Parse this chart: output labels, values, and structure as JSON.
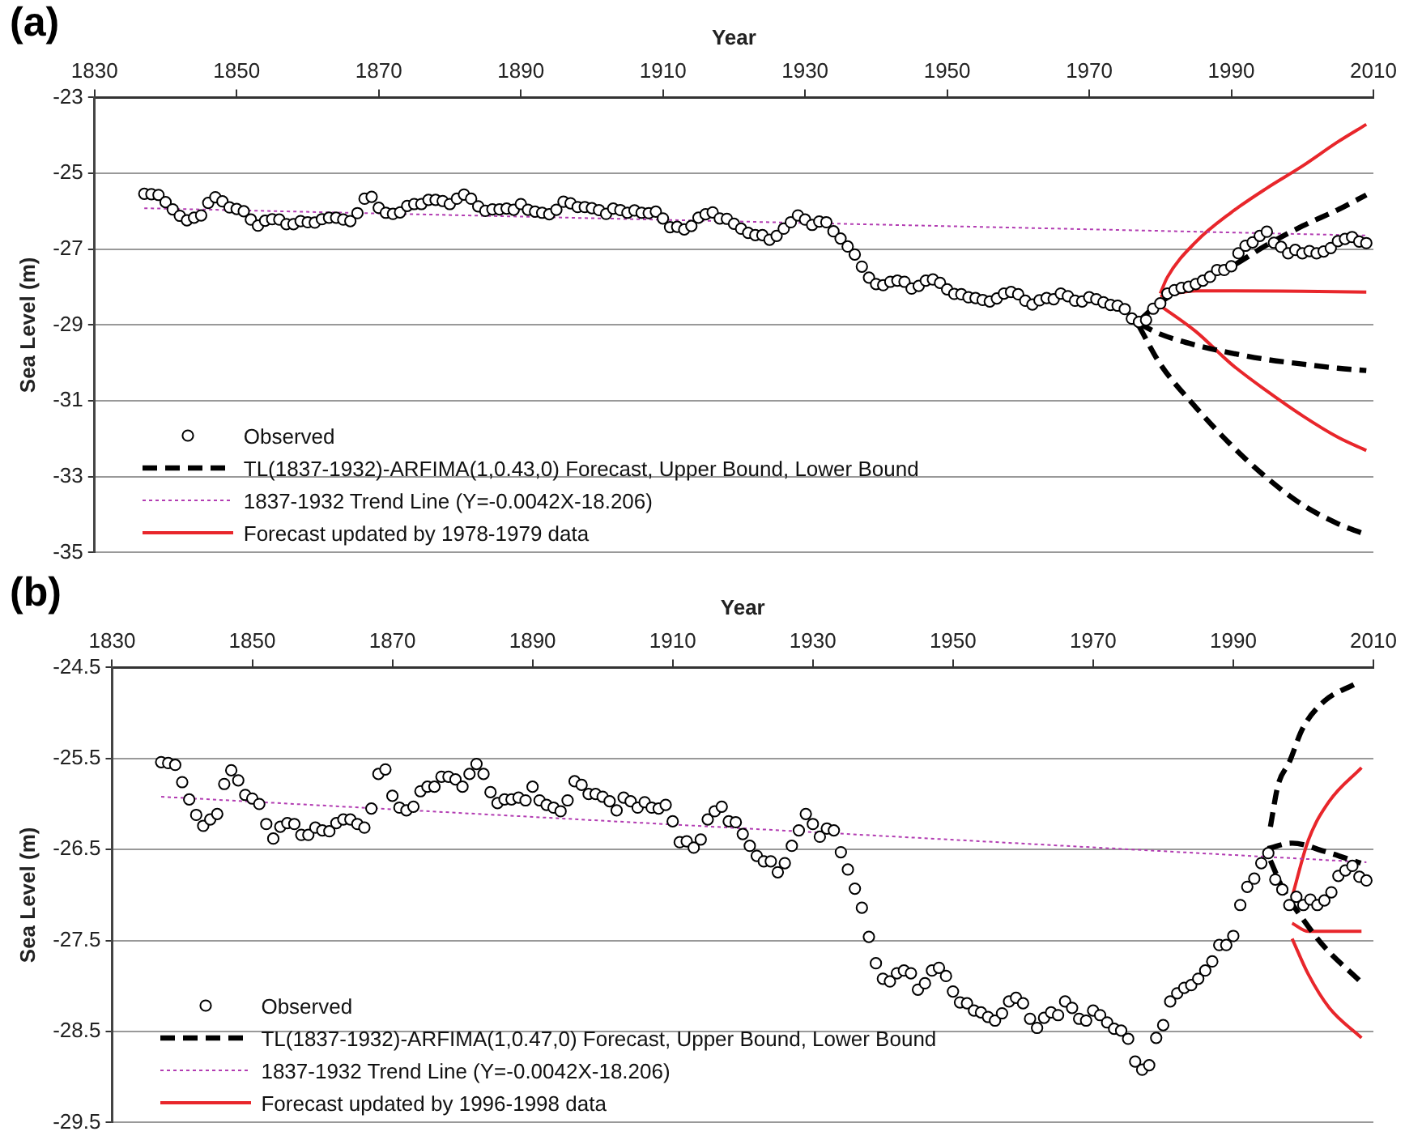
{
  "chart_data": [
    {
      "type": "line",
      "title": "(a)",
      "xlabel": "Year",
      "ylabel": "Sea Level (m)",
      "xlim": [
        1830,
        2010
      ],
      "xticks": [
        1830,
        1850,
        1870,
        1890,
        1910,
        1930,
        1950,
        1970,
        1990,
        2010
      ],
      "ylim": [
        -35,
        -23
      ],
      "yticks": [
        -35,
        -33,
        -31,
        -29,
        -27,
        -25,
        -23
      ],
      "grid": "y",
      "legend": "bottom left",
      "series": [
        {
          "name": "Observed",
          "type": "scatter",
          "marker": "circle",
          "color": "#000000",
          "x": [
            1837,
            1838,
            1839,
            1840,
            1841,
            1842,
            1843,
            1844,
            1845,
            1846,
            1847,
            1848,
            1849,
            1850,
            1851,
            1852,
            1853,
            1854,
            1855,
            1856,
            1857,
            1858,
            1859,
            1860,
            1861,
            1862,
            1863,
            1864,
            1865,
            1866,
            1867,
            1868,
            1869,
            1870,
            1871,
            1872,
            1873,
            1874,
            1875,
            1876,
            1877,
            1878,
            1879,
            1880,
            1881,
            1882,
            1883,
            1884,
            1885,
            1886,
            1887,
            1888,
            1889,
            1890,
            1891,
            1892,
            1893,
            1894,
            1895,
            1896,
            1897,
            1898,
            1899,
            1900,
            1901,
            1902,
            1903,
            1904,
            1905,
            1906,
            1907,
            1908,
            1909,
            1910,
            1911,
            1912,
            1913,
            1914,
            1915,
            1916,
            1917,
            1918,
            1919,
            1920,
            1921,
            1922,
            1923,
            1924,
            1925,
            1926,
            1927,
            1928,
            1929,
            1930,
            1931,
            1932,
            1933,
            1934,
            1935,
            1936,
            1937,
            1938,
            1939,
            1940,
            1941,
            1942,
            1943,
            1944,
            1945,
            1946,
            1947,
            1948,
            1949,
            1950,
            1951,
            1952,
            1953,
            1954,
            1955,
            1956,
            1957,
            1958,
            1959,
            1960,
            1961,
            1962,
            1963,
            1964,
            1965,
            1966,
            1967,
            1968,
            1969,
            1970,
            1971,
            1972,
            1973,
            1974,
            1975,
            1976,
            1977,
            1978,
            1979,
            1980,
            1981,
            1982,
            1983,
            1984,
            1985,
            1986,
            1987,
            1988,
            1989,
            1990,
            1991,
            1992,
            1993,
            1994,
            1995,
            1996,
            1997,
            1998,
            1999,
            2000,
            2001,
            2002,
            2003,
            2004,
            2005,
            2006,
            2007,
            2008,
            2009
          ],
          "values": [
            -25.54,
            -25.55,
            -25.57,
            -25.76,
            -25.95,
            -26.12,
            -26.24,
            -26.17,
            -26.11,
            -25.78,
            -25.63,
            -25.74,
            -25.9,
            -25.94,
            -26.0,
            -26.22,
            -26.38,
            -26.25,
            -26.21,
            -26.22,
            -26.34,
            -26.34,
            -26.26,
            -26.29,
            -26.3,
            -26.21,
            -26.17,
            -26.17,
            -26.22,
            -26.26,
            -26.05,
            -25.67,
            -25.62,
            -25.91,
            -26.04,
            -26.07,
            -26.03,
            -25.86,
            -25.81,
            -25.81,
            -25.7,
            -25.7,
            -25.73,
            -25.81,
            -25.67,
            -25.56,
            -25.67,
            -25.87,
            -25.99,
            -25.95,
            -25.95,
            -25.93,
            -25.96,
            -25.81,
            -25.96,
            -26.01,
            -26.04,
            -26.08,
            -25.96,
            -25.75,
            -25.79,
            -25.89,
            -25.89,
            -25.92,
            -25.97,
            -26.07,
            -25.93,
            -25.97,
            -26.04,
            -25.98,
            -26.04,
            -26.05,
            -26.01,
            -26.19,
            -26.42,
            -26.41,
            -26.48,
            -26.39,
            -26.17,
            -26.08,
            -26.03,
            -26.19,
            -26.2,
            -26.33,
            -26.46,
            -26.57,
            -26.63,
            -26.63,
            -26.75,
            -26.65,
            -26.46,
            -26.29,
            -26.11,
            -26.22,
            -26.36,
            -26.27,
            -26.29,
            -26.53,
            -26.72,
            -26.93,
            -27.14,
            -27.46,
            -27.75,
            -27.92,
            -27.95,
            -27.86,
            -27.83,
            -27.86,
            -28.04,
            -27.97,
            -27.83,
            -27.8,
            -27.89,
            -28.06,
            -28.18,
            -28.19,
            -28.27,
            -28.29,
            -28.34,
            -28.38,
            -28.3,
            -28.17,
            -28.13,
            -28.19,
            -28.36,
            -28.46,
            -28.35,
            -28.29,
            -28.32,
            -28.17,
            -28.24,
            -28.36,
            -28.38,
            -28.27,
            -28.32,
            -28.4,
            -28.47,
            -28.49,
            -28.58,
            -28.83,
            -28.92,
            -28.87,
            -28.57,
            -28.43,
            -28.17,
            -28.08,
            -28.02,
            -27.99,
            -27.92,
            -27.83,
            -27.73,
            -27.55,
            -27.55,
            -27.45,
            -27.11,
            -26.91,
            -26.82,
            -26.65,
            -26.54,
            -26.83,
            -26.94,
            -27.11,
            -27.02,
            -27.11,
            -27.05,
            -27.11,
            -27.06,
            -26.97,
            -26.79,
            -26.73,
            -26.68,
            -26.8,
            -26.84
          ]
        },
        {
          "name": "TL(1837-1932)-ARFIMA(1,0.43,0) Forecast, Upper Bound, Lower Bound",
          "line_style": "dashed",
          "color": "#000000",
          "x": [
            1977,
            1980,
            1985,
            1990,
            1995,
            2000,
            2005,
            2009
          ],
          "values": [
            -28.89,
            -28.4,
            -27.89,
            -27.46,
            -26.89,
            -26.39,
            -25.96,
            -25.57
          ]
        },
        {
          "line_style": "dashed",
          "color": "#000000",
          "x": [
            1977,
            1980,
            1985,
            1990,
            1995,
            2000,
            2005,
            2009
          ],
          "values": [
            -28.96,
            -29.24,
            -29.53,
            -29.74,
            -29.91,
            -30.03,
            -30.14,
            -30.2
          ]
        },
        {
          "line_style": "dashed",
          "color": "#000000",
          "x": [
            1977,
            1980,
            1985,
            1990,
            1995,
            2000,
            2005,
            2009
          ],
          "values": [
            -29.03,
            -30.03,
            -31.17,
            -32.17,
            -33.03,
            -33.74,
            -34.24,
            -34.53
          ]
        },
        {
          "name": "1837-1932 Trend Line (Y=-0.0042X-18.206)",
          "line_style": "dotted",
          "color": "#b23cb2",
          "x": [
            1837,
            2009
          ],
          "values": [
            -25.92,
            -26.64
          ]
        },
        {
          "name": "Forecast updated by 1978-1979 data",
          "line_style": "solid",
          "color": "#e8262b",
          "x": [
            1980,
            1981,
            1985,
            1990,
            1995,
            2000,
            2005,
            2009
          ],
          "values": [
            -28.17,
            -27.74,
            -26.81,
            -26.03,
            -25.39,
            -24.81,
            -24.17,
            -23.71
          ]
        },
        {
          "line_style": "solid",
          "color": "#e8262b",
          "x": [
            1980,
            1985,
            1990,
            2000,
            2009
          ],
          "values": [
            -28.24,
            -28.1,
            -28.1,
            -28.11,
            -28.13
          ]
        },
        {
          "line_style": "solid",
          "color": "#e8262b",
          "x": [
            1980,
            1985,
            1990,
            1995,
            2000,
            2005,
            2009
          ],
          "values": [
            -28.49,
            -29.17,
            -30.03,
            -30.74,
            -31.39,
            -31.96,
            -32.31
          ]
        }
      ]
    },
    {
      "type": "line",
      "title": "(b)",
      "xlabel": "Year",
      "ylabel": "Sea Level (m)",
      "xlim": [
        1830,
        2010
      ],
      "xticks": [
        1830,
        1850,
        1870,
        1890,
        1910,
        1930,
        1950,
        1970,
        1990,
        2010
      ],
      "ylim": [
        -29.5,
        -24.5
      ],
      "yticks": [
        -29.5,
        -28.5,
        -27.5,
        -26.5,
        -25.5,
        -24.5
      ],
      "grid": "y",
      "legend": "bottom left",
      "series": [
        {
          "name": "Observed",
          "type": "scatter",
          "marker": "circle",
          "color": "#000000",
          "x": [
            1837,
            1838,
            1839,
            1840,
            1841,
            1842,
            1843,
            1844,
            1845,
            1846,
            1847,
            1848,
            1849,
            1850,
            1851,
            1852,
            1853,
            1854,
            1855,
            1856,
            1857,
            1858,
            1859,
            1860,
            1861,
            1862,
            1863,
            1864,
            1865,
            1866,
            1867,
            1868,
            1869,
            1870,
            1871,
            1872,
            1873,
            1874,
            1875,
            1876,
            1877,
            1878,
            1879,
            1880,
            1881,
            1882,
            1883,
            1884,
            1885,
            1886,
            1887,
            1888,
            1889,
            1890,
            1891,
            1892,
            1893,
            1894,
            1895,
            1896,
            1897,
            1898,
            1899,
            1900,
            1901,
            1902,
            1903,
            1904,
            1905,
            1906,
            1907,
            1908,
            1909,
            1910,
            1911,
            1912,
            1913,
            1914,
            1915,
            1916,
            1917,
            1918,
            1919,
            1920,
            1921,
            1922,
            1923,
            1924,
            1925,
            1926,
            1927,
            1928,
            1929,
            1930,
            1931,
            1932,
            1933,
            1934,
            1935,
            1936,
            1937,
            1938,
            1939,
            1940,
            1941,
            1942,
            1943,
            1944,
            1945,
            1946,
            1947,
            1948,
            1949,
            1950,
            1951,
            1952,
            1953,
            1954,
            1955,
            1956,
            1957,
            1958,
            1959,
            1960,
            1961,
            1962,
            1963,
            1964,
            1965,
            1966,
            1967,
            1968,
            1969,
            1970,
            1971,
            1972,
            1973,
            1974,
            1975,
            1976,
            1977,
            1978,
            1979,
            1980,
            1981,
            1982,
            1983,
            1984,
            1985,
            1986,
            1987,
            1988,
            1989,
            1990,
            1991,
            1992,
            1993,
            1994,
            1995,
            1996,
            1997,
            1998,
            1999,
            2000,
            2001,
            2002,
            2003,
            2004,
            2005,
            2006,
            2007,
            2008,
            2009
          ],
          "values": [
            -25.54,
            -25.55,
            -25.57,
            -25.76,
            -25.95,
            -26.12,
            -26.24,
            -26.17,
            -26.11,
            -25.78,
            -25.63,
            -25.74,
            -25.9,
            -25.94,
            -26.0,
            -26.22,
            -26.38,
            -26.25,
            -26.21,
            -26.22,
            -26.34,
            -26.34,
            -26.26,
            -26.29,
            -26.3,
            -26.21,
            -26.17,
            -26.17,
            -26.22,
            -26.26,
            -26.05,
            -25.67,
            -25.62,
            -25.91,
            -26.04,
            -26.07,
            -26.03,
            -25.86,
            -25.81,
            -25.81,
            -25.7,
            -25.7,
            -25.73,
            -25.81,
            -25.67,
            -25.56,
            -25.67,
            -25.87,
            -25.99,
            -25.95,
            -25.95,
            -25.93,
            -25.96,
            -25.81,
            -25.96,
            -26.01,
            -26.04,
            -26.08,
            -25.96,
            -25.75,
            -25.79,
            -25.89,
            -25.89,
            -25.92,
            -25.97,
            -26.07,
            -25.93,
            -25.97,
            -26.04,
            -25.98,
            -26.04,
            -26.05,
            -26.01,
            -26.19,
            -26.42,
            -26.41,
            -26.48,
            -26.39,
            -26.17,
            -26.08,
            -26.03,
            -26.19,
            -26.2,
            -26.33,
            -26.46,
            -26.57,
            -26.63,
            -26.63,
            -26.75,
            -26.65,
            -26.46,
            -26.29,
            -26.11,
            -26.22,
            -26.36,
            -26.27,
            -26.29,
            -26.53,
            -26.72,
            -26.93,
            -27.14,
            -27.46,
            -27.75,
            -27.92,
            -27.95,
            -27.86,
            -27.83,
            -27.86,
            -28.04,
            -27.97,
            -27.83,
            -27.8,
            -27.89,
            -28.06,
            -28.18,
            -28.19,
            -28.27,
            -28.29,
            -28.34,
            -28.38,
            -28.3,
            -28.17,
            -28.13,
            -28.19,
            -28.36,
            -28.46,
            -28.35,
            -28.29,
            -28.32,
            -28.17,
            -28.24,
            -28.36,
            -28.38,
            -28.27,
            -28.32,
            -28.4,
            -28.47,
            -28.49,
            -28.58,
            -28.83,
            -28.92,
            -28.87,
            -28.57,
            -28.43,
            -28.17,
            -28.08,
            -28.02,
            -27.99,
            -27.92,
            -27.83,
            -27.73,
            -27.55,
            -27.55,
            -27.45,
            -27.11,
            -26.91,
            -26.82,
            -26.65,
            -26.54,
            -26.83,
            -26.94,
            -27.11,
            -27.02,
            -27.11,
            -27.05,
            -27.11,
            -27.06,
            -26.97,
            -26.79,
            -26.73,
            -26.68,
            -26.8,
            -26.84
          ]
        },
        {
          "name": "TL(1837-1932)-ARFIMA(1,0.47,0) Forecast, Upper Bound, Lower Bound",
          "line_style": "dashed",
          "color": "#000000",
          "x": [
            1995.3,
            1996.4,
            1998,
            1999.9,
            2003,
            2007.4
          ],
          "values": [
            -26.25,
            -25.79,
            -25.54,
            -25.17,
            -24.87,
            -24.68
          ]
        },
        {
          "line_style": "dashed",
          "color": "#000000",
          "x": [
            1994.9,
            1998.4,
            2003,
            2008.2
          ],
          "values": [
            -26.49,
            -26.43,
            -26.52,
            -26.65
          ]
        },
        {
          "line_style": "dashed",
          "color": "#000000",
          "x": [
            1995.3,
            1997.2,
            1999.9,
            2003,
            2008
          ],
          "values": [
            -26.62,
            -26.95,
            -27.26,
            -27.57,
            -27.94
          ]
        },
        {
          "name": "1837-1932 Trend Line (Y=-0.0042X-18.206)",
          "line_style": "dotted",
          "color": "#b23cb2",
          "x": [
            1837,
            2009
          ],
          "values": [
            -25.92,
            -26.64
          ]
        },
        {
          "name": "Forecast updated by 1996-1998 data",
          "line_style": "solid",
          "color": "#e8262b",
          "x": [
            1998.4,
            2000.7,
            2003.7,
            2008.3
          ],
          "values": [
            -27.02,
            -26.4,
            -25.97,
            -25.6
          ]
        },
        {
          "line_style": "solid",
          "color": "#e8262b",
          "x": [
            1998.4,
            2000.7,
            2008.3
          ],
          "values": [
            -27.31,
            -27.4,
            -27.4
          ]
        },
        {
          "line_style": "solid",
          "color": "#e8262b",
          "x": [
            1998.4,
            2000.7,
            2003.7,
            2008.3
          ],
          "values": [
            -27.48,
            -27.87,
            -28.24,
            -28.57
          ]
        }
      ]
    }
  ]
}
